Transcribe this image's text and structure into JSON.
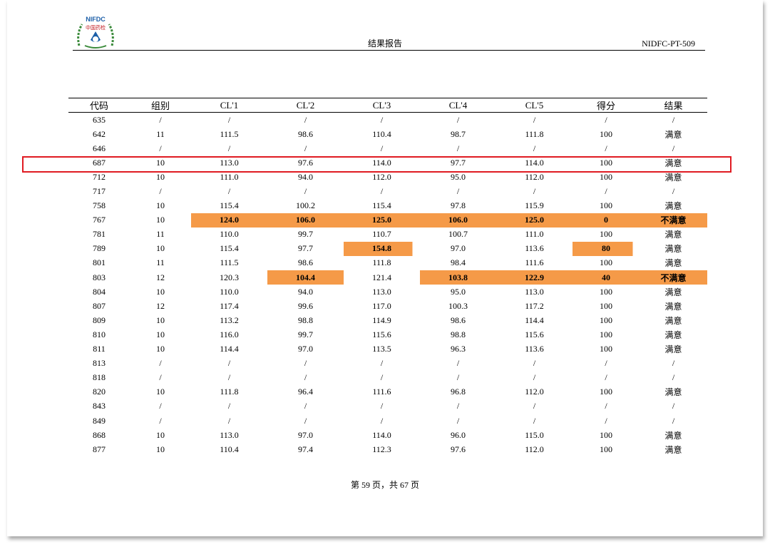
{
  "header": {
    "logo_text": "NIFDC",
    "logo_cn": "中国药检",
    "title": "结果报告",
    "doc_id": "NIDFC-PT-509"
  },
  "table": {
    "columns": [
      "代码",
      "组别",
      "CL'1",
      "CL'2",
      "CL'3",
      "CL'4",
      "CL'5",
      "得分",
      "结果"
    ],
    "rows": [
      [
        "635",
        "/",
        "/",
        "/",
        "/",
        "/",
        "/",
        "/",
        "/"
      ],
      [
        "642",
        "11",
        "111.5",
        "98.6",
        "110.4",
        "98.7",
        "111.8",
        "100",
        "满意"
      ],
      [
        "646",
        "/",
        "/",
        "/",
        "/",
        "/",
        "/",
        "/",
        "/"
      ],
      [
        "687",
        "10",
        "113.0",
        "97.6",
        "114.0",
        "97.7",
        "114.0",
        "100",
        "满意"
      ],
      [
        "712",
        "10",
        "111.0",
        "94.0",
        "112.0",
        "95.0",
        "112.0",
        "100",
        "满意"
      ],
      [
        "717",
        "/",
        "/",
        "/",
        "/",
        "/",
        "/",
        "/",
        "/"
      ],
      [
        "758",
        "10",
        "115.4",
        "100.2",
        "115.4",
        "97.8",
        "115.9",
        "100",
        "满意"
      ],
      [
        "767",
        "10",
        "124.0",
        "106.0",
        "125.0",
        "106.0",
        "125.0",
        "0",
        "不满意"
      ],
      [
        "781",
        "11",
        "110.0",
        "99.7",
        "110.7",
        "100.7",
        "111.0",
        "100",
        "满意"
      ],
      [
        "789",
        "10",
        "115.4",
        "97.7",
        "154.8",
        "97.0",
        "113.6",
        "80",
        "满意"
      ],
      [
        "801",
        "11",
        "111.5",
        "98.6",
        "111.8",
        "98.4",
        "111.6",
        "100",
        "满意"
      ],
      [
        "803",
        "12",
        "120.3",
        "104.4",
        "121.4",
        "103.8",
        "122.9",
        "40",
        "不满意"
      ],
      [
        "804",
        "10",
        "110.0",
        "94.0",
        "113.0",
        "95.0",
        "113.0",
        "100",
        "满意"
      ],
      [
        "807",
        "12",
        "117.4",
        "99.6",
        "117.0",
        "100.3",
        "117.2",
        "100",
        "满意"
      ],
      [
        "809",
        "10",
        "113.2",
        "98.8",
        "114.9",
        "98.6",
        "114.4",
        "100",
        "满意"
      ],
      [
        "810",
        "10",
        "116.0",
        "99.7",
        "115.6",
        "98.8",
        "115.6",
        "100",
        "满意"
      ],
      [
        "811",
        "10",
        "114.4",
        "97.0",
        "113.5",
        "96.3",
        "113.6",
        "100",
        "满意"
      ],
      [
        "813",
        "/",
        "/",
        "/",
        "/",
        "/",
        "/",
        "/",
        "/"
      ],
      [
        "818",
        "/",
        "/",
        "/",
        "/",
        "/",
        "/",
        "/",
        "/"
      ],
      [
        "820",
        "10",
        "111.8",
        "96.4",
        "111.6",
        "96.8",
        "112.0",
        "100",
        "满意"
      ],
      [
        "843",
        "/",
        "/",
        "/",
        "/",
        "/",
        "/",
        "/",
        "/"
      ],
      [
        "849",
        "/",
        "/",
        "/",
        "/",
        "/",
        "/",
        "/",
        "/"
      ],
      [
        "868",
        "10",
        "113.0",
        "97.0",
        "114.0",
        "96.0",
        "115.0",
        "100",
        "满意"
      ],
      [
        "877",
        "10",
        "110.4",
        "97.4",
        "112.3",
        "97.6",
        "112.0",
        "100",
        "满意"
      ]
    ],
    "highlighted_cells": [
      [
        "767",
        [
          2,
          3,
          4,
          5,
          6,
          7,
          8
        ]
      ],
      [
        "789",
        [
          4,
          7
        ]
      ],
      [
        "803",
        [
          3,
          5,
          6,
          7,
          8
        ]
      ]
    ],
    "selected_row": "687",
    "highlight_color": "#f59a48",
    "selection_color": "#e01b22"
  },
  "footer": {
    "page_label": "第 59 页，共 67 页"
  }
}
